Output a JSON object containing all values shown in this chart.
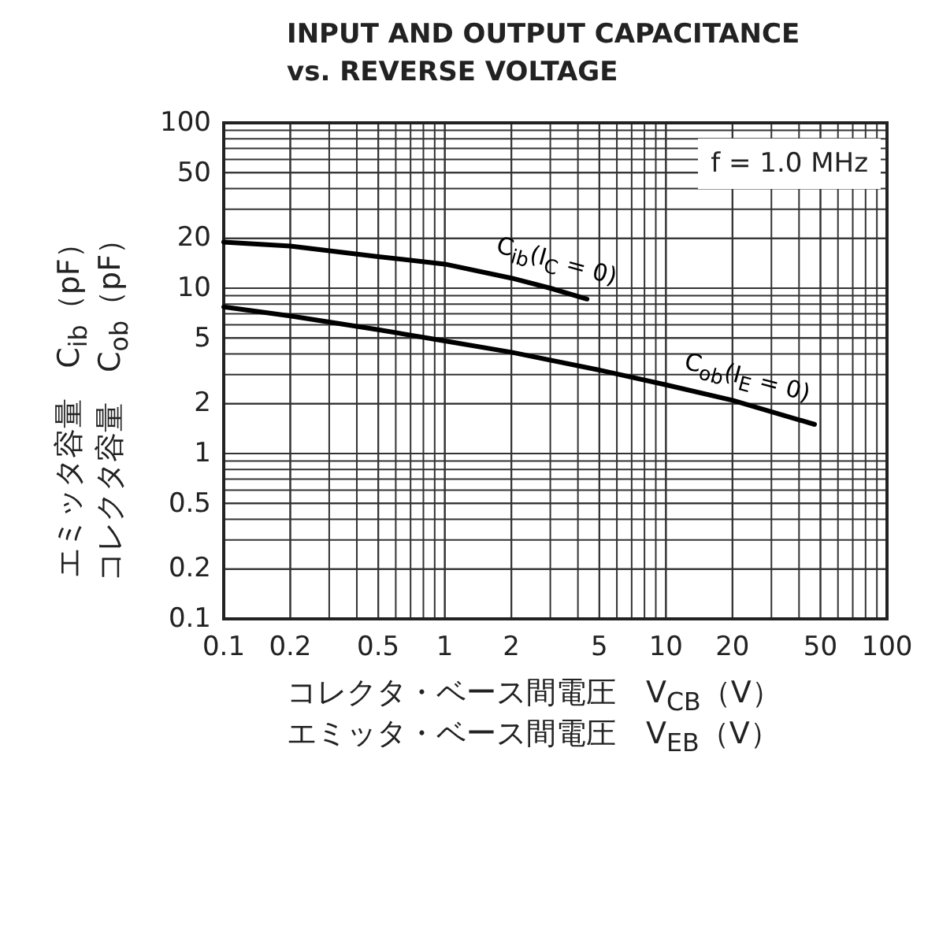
{
  "chart_data": {
    "type": "line",
    "title": "INPUT AND OUTPUT CAPACITANCE\nvs. REVERSE VOLTAGE",
    "xlabel": "コレクタ・ベース間電圧　V$_{CB}$（V）",
    "ylabel": "エミッタ容量　C$_{ib}$（pF）",
    "annotations": [
      "f = 1.0 MHz",
      "エミッタ・ベース間電圧　V$_{EB}$（V）",
      "コレクタ容量　C$_{ob}$（pF）"
    ],
    "log": "xy",
    "grid": true,
    "xlim": [
      0.1,
      100
    ],
    "ylim": [
      0.1,
      100
    ],
    "xticks": [
      0.1,
      0.2,
      0.5,
      1,
      2,
      5,
      10,
      20,
      50,
      100
    ],
    "yticks": [
      0.1,
      0.2,
      0.5,
      1,
      2,
      5,
      10,
      20,
      50,
      100
    ],
    "series": [
      {
        "name": "C$_{ib}$(I$_{C}$ = 0)",
        "color": "#000000",
        "x": [
          0.1,
          0.2,
          0.5,
          1,
          2,
          3,
          4.4
        ],
        "values": [
          19,
          18,
          15.5,
          14,
          11.5,
          10,
          8.6
        ]
      },
      {
        "name": "C$_{ob}$(I$_{E}$ = 0)",
        "color": "#000000",
        "x": [
          0.1,
          0.2,
          0.5,
          1,
          2,
          5,
          10,
          20,
          47
        ],
        "values": [
          7.7,
          6.8,
          5.6,
          4.8,
          4.1,
          3.2,
          2.6,
          2.1,
          1.5
        ]
      }
    ]
  }
}
